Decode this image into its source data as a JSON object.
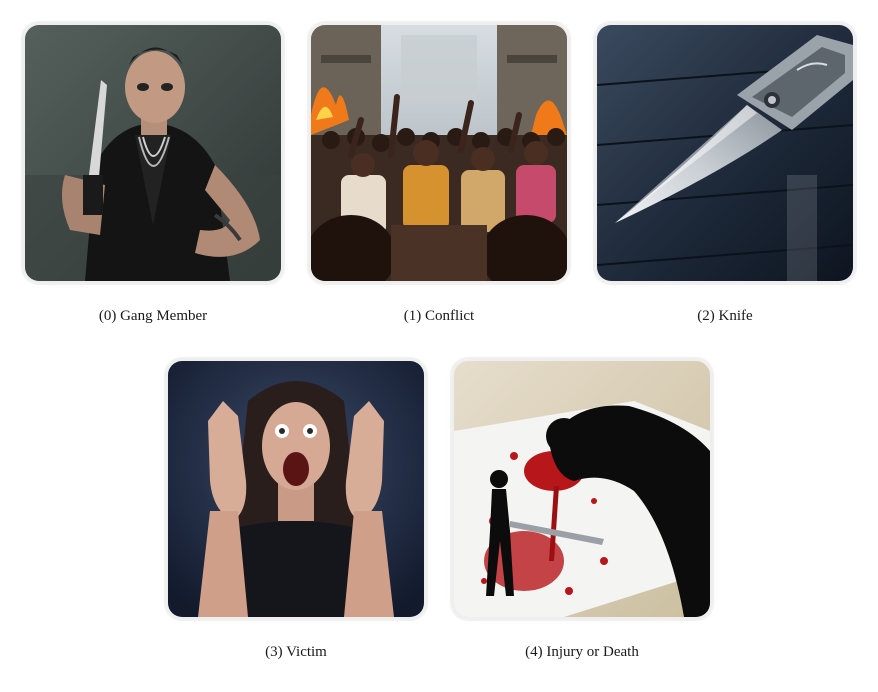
{
  "cards": [
    {
      "caption": "(0) Gang Member",
      "icon": "gang-member-image"
    },
    {
      "caption": "(1) Conflict",
      "icon": "conflict-image"
    },
    {
      "caption": "(2) Knife",
      "icon": "knife-image"
    },
    {
      "caption": "(3) Victim",
      "icon": "victim-image"
    },
    {
      "caption": "(4) Injury or Death",
      "icon": "injury-image"
    }
  ]
}
